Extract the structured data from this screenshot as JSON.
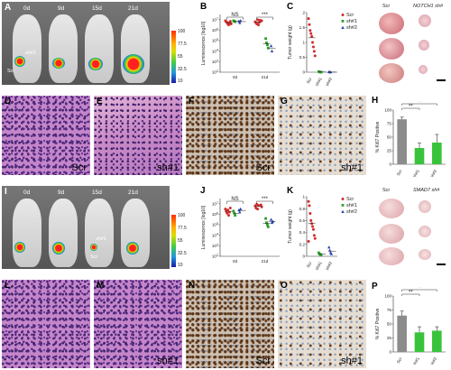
{
  "figure": {
    "panels": {
      "A": {
        "label": "A",
        "days": [
          "0d",
          "9d",
          "15d",
          "21d"
        ],
        "annotations": [
          "sh#1",
          "Scr"
        ],
        "colorbar": [
          "100",
          "77.5",
          "55",
          "32.5",
          "10"
        ]
      },
      "B": {
        "label": "B"
      },
      "C": {
        "label": "C"
      },
      "D": {
        "label": "D"
      },
      "E": {
        "label": "E",
        "caption": "sh#1"
      },
      "F": {
        "label": "F",
        "caption": "Scr"
      },
      "G": {
        "label": "G",
        "caption": "sh#1"
      },
      "H": {
        "label": "H"
      },
      "I": {
        "label": "I",
        "days": [
          "0d",
          "9d",
          "15d",
          "21d"
        ],
        "annotations": [
          "sh#1",
          "Scr"
        ],
        "colorbar": [
          "100",
          "77.5",
          "55",
          "32.5",
          "10"
        ]
      },
      "J": {
        "label": "J"
      },
      "K": {
        "label": "K"
      },
      "L": {
        "label": "L"
      },
      "M": {
        "label": "M",
        "caption": "sh#1"
      },
      "N": {
        "label": "N",
        "caption": "Scr"
      },
      "O": {
        "label": "O",
        "caption": "sh#1"
      },
      "P": {
        "label": "P"
      },
      "D_caption": "Scr",
      "L_caption": "",
      "photo_top": {
        "left": "Scr",
        "right": "NOTCH1 sh#"
      },
      "photo_bottom": {
        "left": "Scr",
        "right": "SMAD7 sh#"
      }
    }
  },
  "chart_data": [
    {
      "id": "B",
      "type": "scatter",
      "ylabel": "Luminescence [log10]",
      "yticks": [
        "10^7",
        "10^6",
        "10^5",
        "10^4",
        "10^3",
        "10^2"
      ],
      "ylim": [
        2,
        7.5
      ],
      "categories": [
        "0d",
        "21d"
      ],
      "significance": [
        "NS",
        "***"
      ],
      "series": [
        {
          "name": "Scr",
          "color": "#d42a2a",
          "x": [
            "0d",
            "0d",
            "0d",
            "0d",
            "0d",
            "0d",
            "0d",
            "0d",
            "21d",
            "21d",
            "21d",
            "21d",
            "21d",
            "21d",
            "21d",
            "21d"
          ],
          "y": [
            6.9,
            6.8,
            6.75,
            6.6,
            6.5,
            6.7,
            6.85,
            6.6,
            6.9,
            6.8,
            6.7,
            6.6,
            7.0,
            6.5,
            6.75,
            6.95
          ]
        },
        {
          "name": "sh#1",
          "color": "#2aa02a",
          "x": [
            "0d",
            "0d",
            "0d",
            "21d",
            "21d",
            "21d",
            "21d"
          ],
          "y": [
            6.9,
            6.85,
            6.8,
            5.2,
            4.8,
            4.6,
            4.3
          ]
        },
        {
          "name": "sh#2",
          "color": "#2a3fae",
          "x": [
            "0d",
            "0d",
            "0d",
            "21d",
            "21d"
          ],
          "y": [
            6.85,
            6.7,
            6.9,
            4.5,
            4.0
          ]
        }
      ]
    },
    {
      "id": "C",
      "type": "scatter",
      "ylabel": "Tumor weight (g)",
      "yticks": [
        "2",
        "1.5",
        "1",
        "0.5",
        "0"
      ],
      "ylim": [
        0,
        2
      ],
      "categories": [
        "Scr",
        "sh#1",
        "sh#2"
      ],
      "legend": [
        "Scr",
        "sh#1",
        "sh#2"
      ],
      "series": [
        {
          "name": "Scr",
          "color": "#d42a2a",
          "x": [
            "Scr",
            "Scr",
            "Scr",
            "Scr",
            "Scr",
            "Scr",
            "Scr",
            "Scr",
            "Scr"
          ],
          "y": [
            1.8,
            1.6,
            1.4,
            1.3,
            1.2,
            1.0,
            0.85,
            0.7,
            0.55
          ]
        },
        {
          "name": "sh#1",
          "color": "#2aa02a",
          "x": [
            "sh#1",
            "sh#1",
            "sh#1",
            "sh#1"
          ],
          "y": [
            0.02,
            0.01,
            0.0,
            0.0
          ]
        },
        {
          "name": "sh#2",
          "color": "#2a3fae",
          "x": [
            "sh#2",
            "sh#2",
            "sh#2"
          ],
          "y": [
            0.01,
            0.0,
            0.0
          ]
        }
      ]
    },
    {
      "id": "H",
      "type": "bar",
      "ylabel": "% Ki67 Positive",
      "yticks": [
        "100",
        "75",
        "50",
        "25",
        "0"
      ],
      "ylim": [
        0,
        100
      ],
      "categories": [
        "Scr",
        "sh#1",
        "sh#2"
      ],
      "values": [
        83,
        30,
        40
      ],
      "errors": [
        4,
        9,
        15
      ],
      "colors": [
        "#8c8c8c",
        "#39c33c",
        "#39c33c"
      ],
      "significance": [
        "**",
        "**"
      ]
    },
    {
      "id": "J",
      "type": "scatter",
      "ylabel": "Luminescence [log10]",
      "yticks": [
        "10^7",
        "10^6",
        "10^5",
        "10^4",
        "10^3",
        "10^2"
      ],
      "ylim": [
        2,
        7.5
      ],
      "categories": [
        "0d",
        "21d"
      ],
      "significance": [
        "NS",
        "***"
      ],
      "series": [
        {
          "name": "Scr",
          "color": "#d42a2a",
          "x": [
            "0d",
            "0d",
            "0d",
            "0d",
            "0d",
            "0d",
            "0d",
            "21d",
            "21d",
            "21d",
            "21d",
            "21d",
            "21d",
            "21d"
          ],
          "y": [
            6.5,
            6.3,
            6.1,
            6.4,
            5.9,
            6.2,
            6.6,
            6.9,
            6.7,
            6.8,
            6.6,
            6.95,
            6.5,
            6.85
          ]
        },
        {
          "name": "sh#1",
          "color": "#2aa02a",
          "x": [
            "0d",
            "0d",
            "0d",
            "21d",
            "21d",
            "21d",
            "21d"
          ],
          "y": [
            6.3,
            6.1,
            5.9,
            5.6,
            5.2,
            5.0,
            4.8
          ]
        },
        {
          "name": "sh#2",
          "color": "#2a3fae",
          "x": [
            "0d",
            "0d",
            "0d",
            "21d",
            "21d",
            "21d"
          ],
          "y": [
            6.4,
            6.2,
            6.5,
            5.5,
            5.2,
            5.3
          ]
        }
      ]
    },
    {
      "id": "K",
      "type": "scatter",
      "ylabel": "Tumor weight (g)",
      "yticks": [
        "1",
        "0.8",
        "0.6",
        "0.4",
        "0.2",
        "0"
      ],
      "ylim": [
        0,
        1
      ],
      "categories": [
        "Scr",
        "sh#1",
        "sh#2"
      ],
      "legend": [
        "Scr",
        "sh#1",
        "sh#2"
      ],
      "series": [
        {
          "name": "Scr",
          "color": "#d42a2a",
          "x": [
            "Scr",
            "Scr",
            "Scr",
            "Scr",
            "Scr",
            "Scr",
            "Scr",
            "Scr",
            "Scr",
            "Scr"
          ],
          "y": [
            0.92,
            0.85,
            0.72,
            0.6,
            0.55,
            0.5,
            0.45,
            0.35,
            0.3,
            0.25
          ]
        },
        {
          "name": "sh#1",
          "color": "#2aa02a",
          "x": [
            "sh#1",
            "sh#1",
            "sh#1",
            "sh#1"
          ],
          "y": [
            0.06,
            0.04,
            0.03,
            0.02
          ]
        },
        {
          "name": "sh#2",
          "color": "#2a3fae",
          "x": [
            "sh#2",
            "sh#2",
            "sh#2",
            "sh#2"
          ],
          "y": [
            0.15,
            0.1,
            0.06,
            0.04
          ]
        }
      ]
    },
    {
      "id": "P",
      "type": "bar",
      "ylabel": "% Ki67 Positive",
      "yticks": [
        "100",
        "75",
        "50",
        "25",
        "0"
      ],
      "ylim": [
        0,
        100
      ],
      "categories": [
        "Scr",
        "sh#1",
        "sh#2"
      ],
      "values": [
        65,
        35,
        38
      ],
      "errors": [
        8,
        10,
        7
      ],
      "colors": [
        "#8c8c8c",
        "#39c33c",
        "#39c33c"
      ],
      "significance": [
        "**",
        "**"
      ]
    }
  ]
}
